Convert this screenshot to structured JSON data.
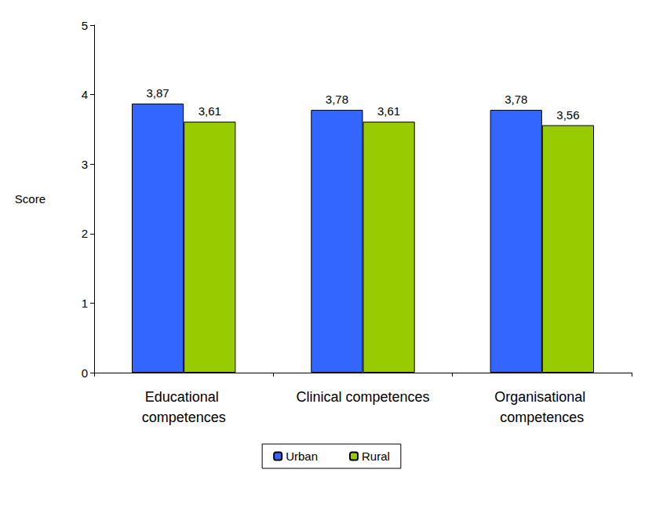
{
  "chart_data": {
    "type": "bar",
    "ylabel": "Score",
    "categories": [
      "Educational competences",
      "Clinical competences",
      "Organisational competences"
    ],
    "series": [
      {
        "name": "Urban",
        "color": "#3366ff",
        "values": [
          3.87,
          3.78,
          3.78
        ],
        "value_labels": [
          "3,87",
          "3,78",
          "3,78"
        ]
      },
      {
        "name": "Rural",
        "color": "#99cc00",
        "values": [
          3.61,
          3.61,
          3.56
        ],
        "value_labels": [
          "3,61",
          "3,61",
          "3,56"
        ]
      }
    ],
    "ylim": [
      0,
      5
    ],
    "yticks": [
      0,
      1,
      2,
      3,
      4,
      5
    ],
    "grid": false,
    "legend": "bottom",
    "data_labels": true
  }
}
